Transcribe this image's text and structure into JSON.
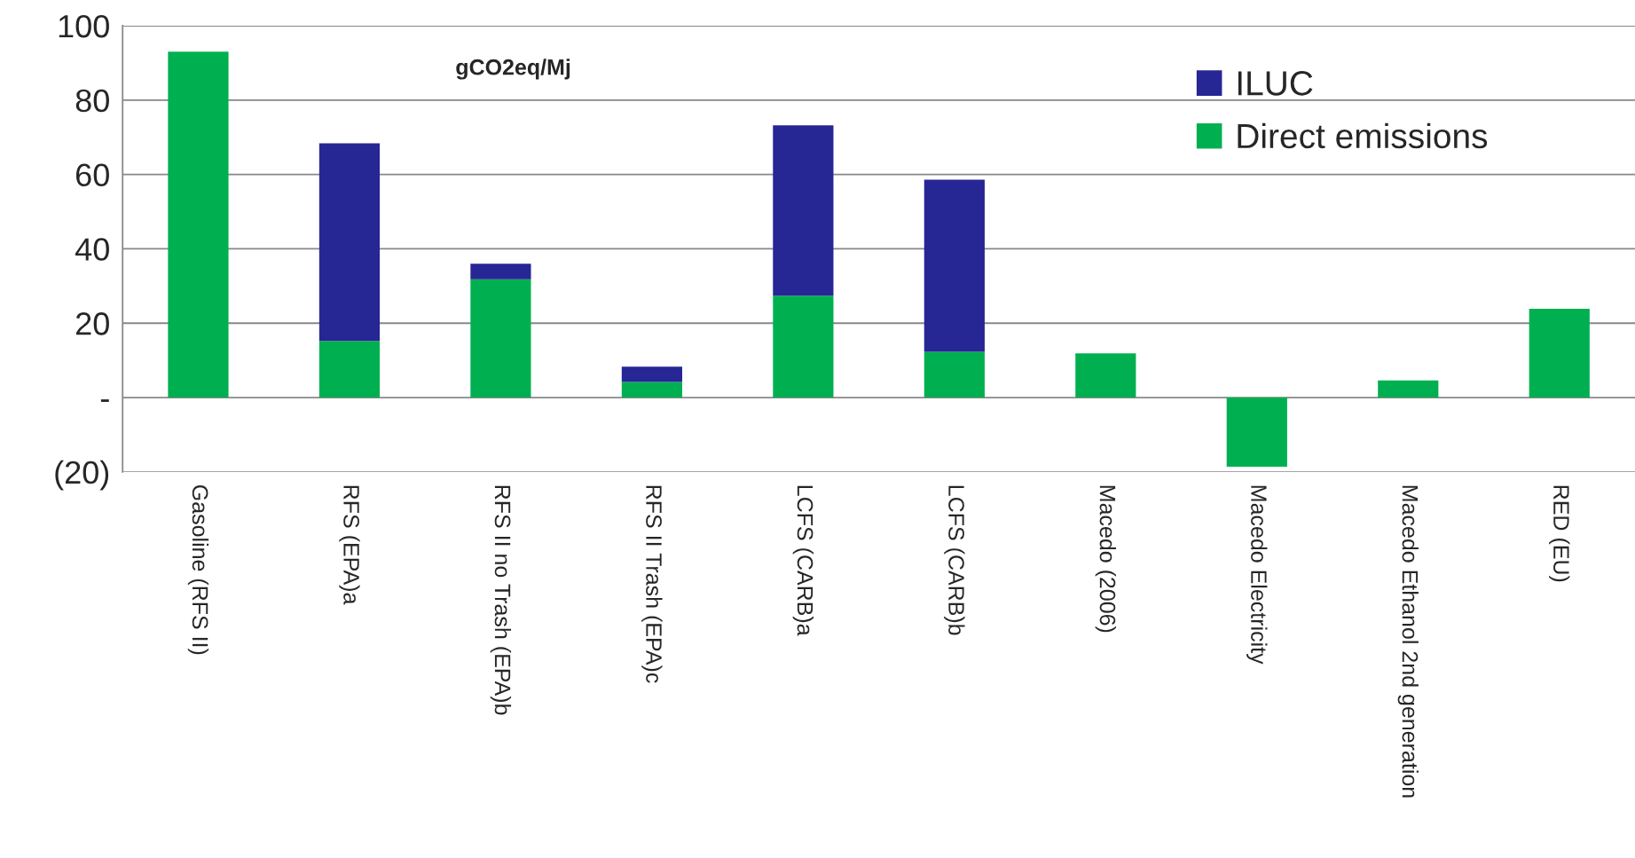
{
  "chart_data": {
    "type": "bar",
    "stacked": true,
    "categories": [
      "Gasoline (RFS II)",
      "RFS (EPA)a",
      "RFS II no Trash (EPA)b",
      "RFS II Trash (EPA)c",
      "LCFS (CARB)a",
      "LCFS (CARB)b",
      "Macedo (2006)",
      "Macedo Electricity",
      "Macedo Ethanol 2nd generation",
      "RED (EU)"
    ],
    "series": [
      {
        "name": "Direct emissions",
        "color": "#00b050",
        "values": [
          93,
          15.2,
          31.8,
          4.2,
          27.4,
          12.3,
          11.9,
          -18.6,
          4.6,
          23.9
        ]
      },
      {
        "name": "ILUC",
        "color": "#262694",
        "values": [
          null,
          53.2,
          4.2,
          4.1,
          45.8,
          46.3,
          null,
          null,
          null,
          null
        ]
      }
    ],
    "ylim": [
      -20,
      100
    ],
    "yticks": [
      {
        "value": -20,
        "label": "(20)"
      },
      {
        "value": 0,
        "label": "-"
      },
      20,
      40,
      60,
      80,
      100
    ],
    "grid": "y",
    "legend": "top right",
    "annotations": [
      "gCO2eq/Mj"
    ]
  }
}
